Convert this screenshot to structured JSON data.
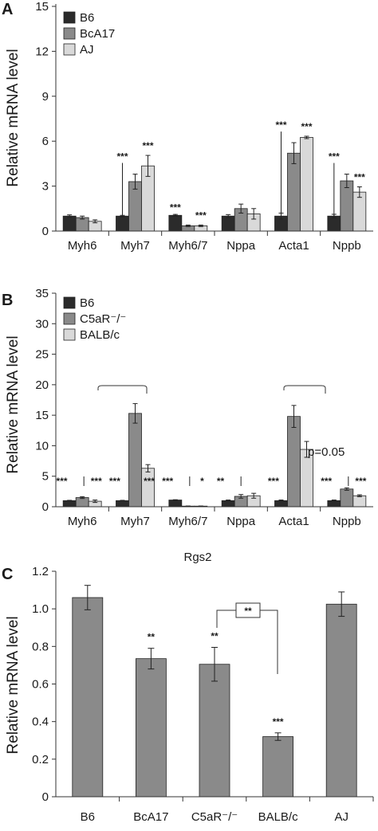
{
  "colors": {
    "dark": "#2b2b2b",
    "mid": "#8a8a8a",
    "light": "#d9d9d9"
  },
  "chart_data": [
    {
      "panel": "A",
      "type": "bar",
      "ylabel": "Relative mRNA level",
      "ylim": [
        0,
        15
      ],
      "yticks": [
        0,
        3,
        6,
        9,
        12,
        15
      ],
      "categories": [
        "Myh6",
        "Myh7",
        "Myh6/7",
        "Nppa",
        "Acta1",
        "Nppb"
      ],
      "series": [
        {
          "name": "B6",
          "color_key": "dark",
          "values": [
            1.0,
            1.0,
            1.05,
            1.0,
            1.0,
            1.0
          ],
          "errors": [
            0.08,
            0.05,
            0.06,
            0.1,
            0.2,
            0.12
          ]
        },
        {
          "name": "BcA17",
          "color_key": "mid",
          "values": [
            0.9,
            3.3,
            0.35,
            1.5,
            5.2,
            3.35
          ],
          "errors": [
            0.1,
            0.5,
            0.05,
            0.3,
            0.7,
            0.45
          ]
        },
        {
          "name": "AJ",
          "color_key": "light",
          "values": [
            0.65,
            4.35,
            0.35,
            1.15,
            6.25,
            2.6
          ],
          "errors": [
            0.1,
            0.7,
            0.05,
            0.35,
            0.08,
            0.35
          ]
        }
      ],
      "annotations": [
        {
          "text": "***",
          "cat": 1,
          "series": 1
        },
        {
          "text": "***",
          "cat": 1,
          "series": 2
        },
        {
          "text": "***",
          "cat": 2,
          "series": 1
        },
        {
          "text": "***",
          "cat": 2,
          "series": 2
        },
        {
          "text": "***",
          "cat": 4,
          "series": 1
        },
        {
          "text": "***",
          "cat": 4,
          "series": 2
        },
        {
          "text": "***",
          "cat": 5,
          "series": 1
        },
        {
          "text": "***",
          "cat": 5,
          "series": 2
        }
      ]
    },
    {
      "panel": "B",
      "type": "bar",
      "ylabel": "Relative mRNA level",
      "ylim": [
        0,
        35
      ],
      "yticks": [
        0,
        5,
        10,
        15,
        20,
        25,
        30,
        35
      ],
      "categories": [
        "Myh6",
        "Myh7",
        "Myh6/7",
        "Nppa",
        "Acta1",
        "Nppb"
      ],
      "series": [
        {
          "name": "B6",
          "color_key": "dark",
          "values": [
            1.0,
            1.0,
            1.1,
            1.0,
            1.0,
            1.0
          ],
          "errors": [
            0.05,
            0.05,
            0.05,
            0.1,
            0.1,
            0.1
          ]
        },
        {
          "name": "C5aR⁻/⁻",
          "color_key": "mid",
          "values": [
            1.5,
            15.3,
            0.1,
            1.7,
            14.8,
            2.9
          ],
          "errors": [
            0.15,
            1.6,
            0.02,
            0.3,
            1.8,
            0.2
          ]
        },
        {
          "name": "BALB/c",
          "color_key": "light",
          "values": [
            0.9,
            6.3,
            0.1,
            1.8,
            9.4,
            1.8
          ],
          "errors": [
            0.2,
            0.6,
            0.02,
            0.4,
            1.3,
            0.15
          ]
        }
      ],
      "annotations": [
        {
          "text": "***",
          "cat": 0,
          "series": 0
        },
        {
          "text": "***",
          "cat": 0,
          "series": 2
        },
        {
          "text": "***",
          "cat": 1,
          "series": 0
        },
        {
          "text": "***",
          "cat": 1,
          "series": 2
        },
        {
          "text": "***",
          "cat": 2,
          "series": 0
        },
        {
          "text": "*",
          "cat": 2,
          "series": 2
        },
        {
          "text": "**",
          "cat": 3,
          "series": 0
        },
        {
          "text": "***",
          "cat": 4,
          "series": 0
        },
        {
          "text": "***",
          "cat": 5,
          "series": 0
        },
        {
          "text": "***",
          "cat": 5,
          "series": 2
        }
      ],
      "note": "p=0.05"
    },
    {
      "panel": "C",
      "type": "bar",
      "title": "Rgs2",
      "ylabel": "Relative mRNA level",
      "ylim": [
        0,
        1.2
      ],
      "yticks": [
        "0",
        "0.2",
        "0.4",
        "0.6",
        "0.8",
        "1.0",
        "1.2"
      ],
      "categories": [
        "B6",
        "BcA17",
        "C5aR⁻/⁻",
        "BALB/c",
        "AJ"
      ],
      "values": [
        1.06,
        0.735,
        0.705,
        0.32,
        1.025
      ],
      "errors": [
        0.065,
        0.055,
        0.09,
        0.02,
        0.065
      ],
      "color_key": "mid",
      "annotations": [
        "",
        "**",
        "**",
        "***",
        ""
      ],
      "bracket_label": "**"
    }
  ]
}
